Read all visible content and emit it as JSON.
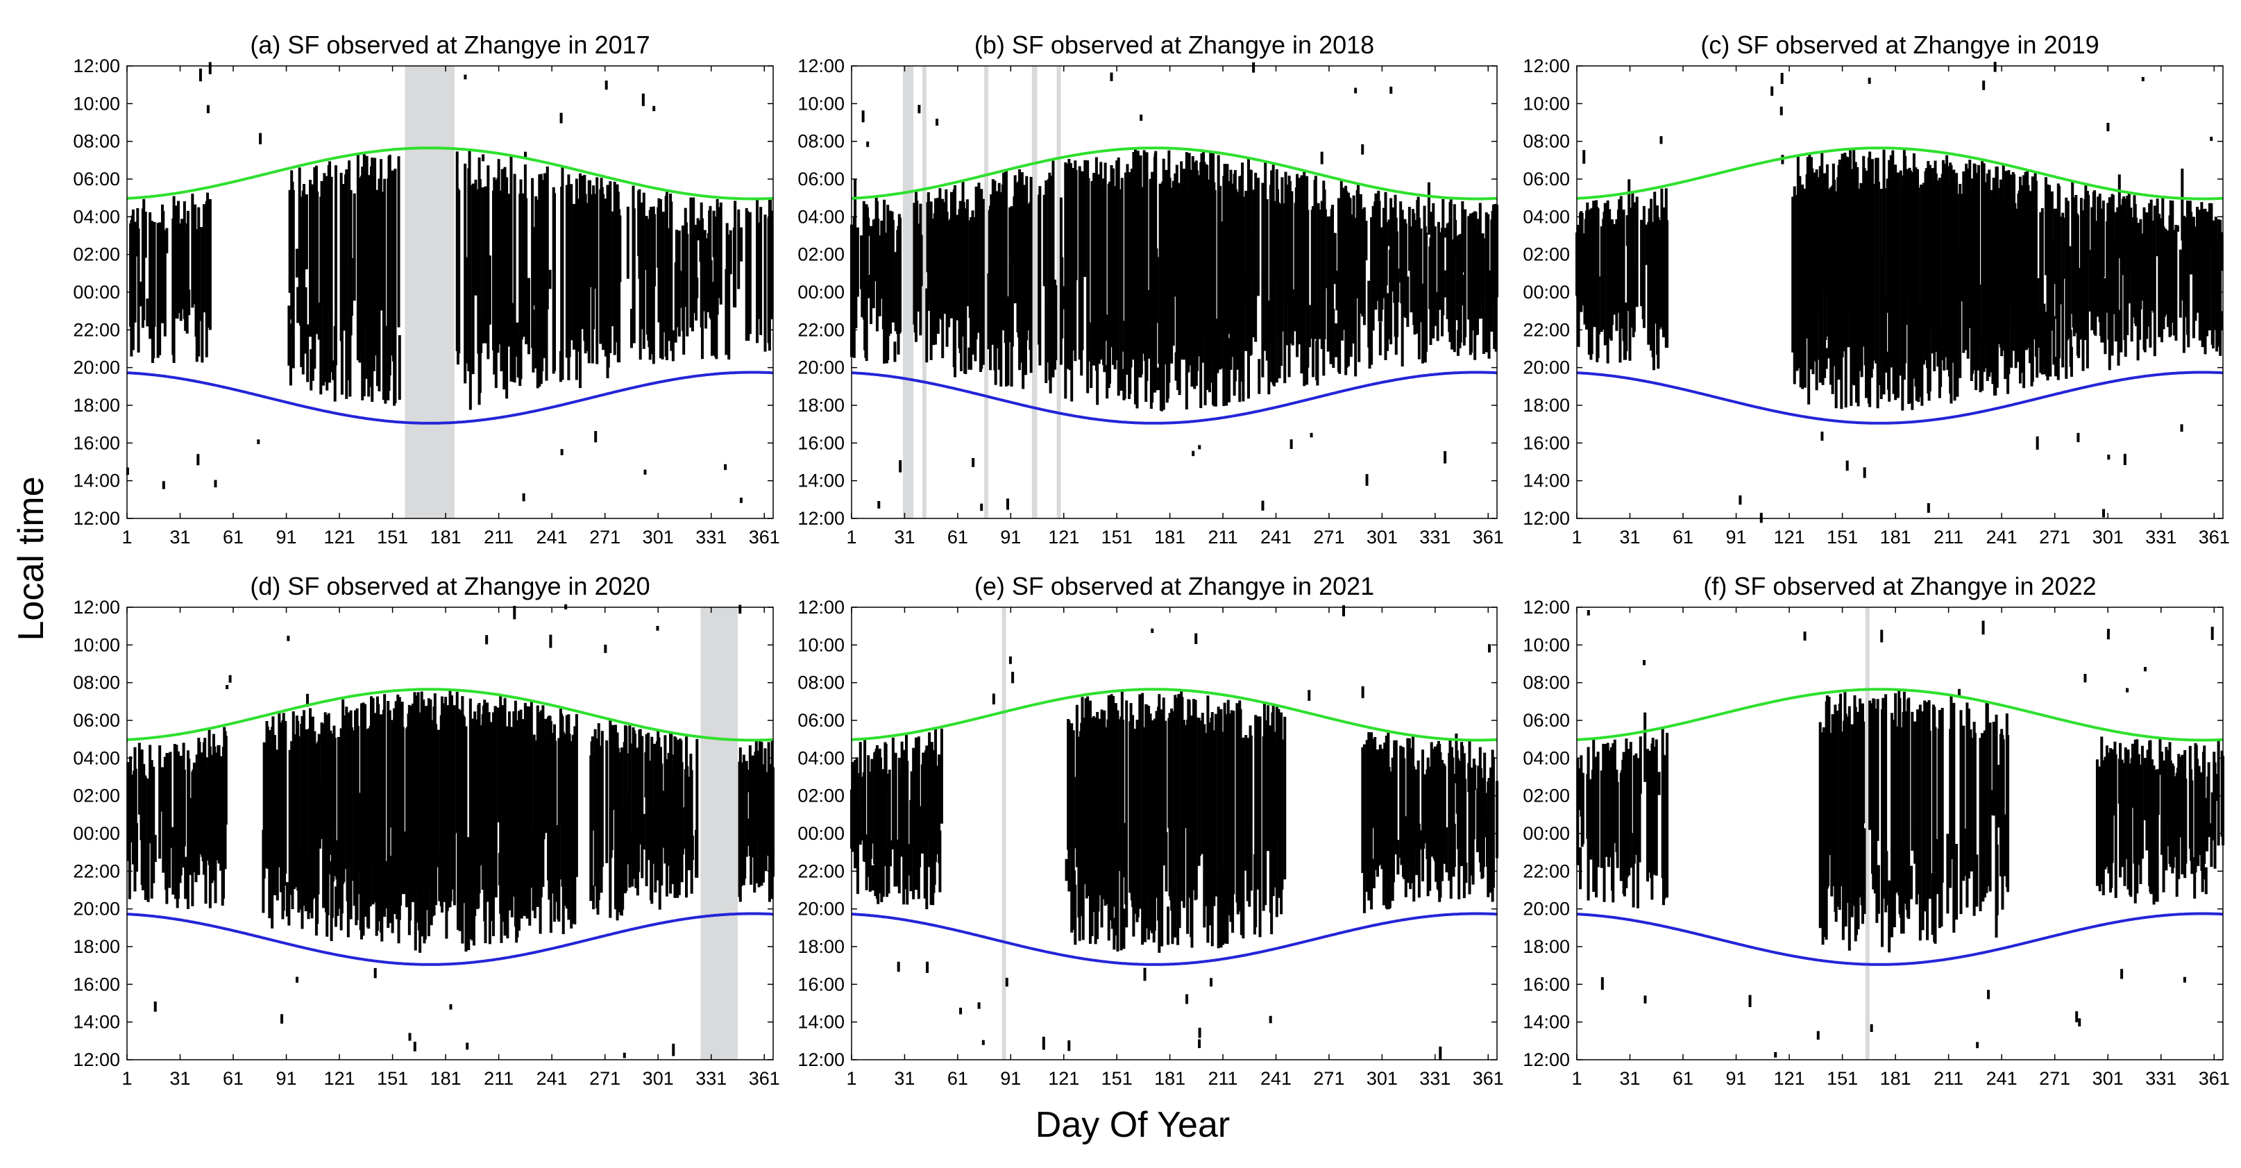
{
  "figure": {
    "xlabel": "Day Of Year",
    "ylabel": "Local time",
    "colors": {
      "sunrise": "#2ee02e",
      "sunset": "#2424d8",
      "observation": "#000000",
      "data_gap": "#d9dadb"
    }
  },
  "chart_data": [
    {
      "type": "scatter",
      "panel": "a",
      "title": "(a) SF observed at Zhangye in 2017",
      "xlim": [
        1,
        366
      ],
      "xticks": [
        "1",
        "31",
        "61",
        "91",
        "121",
        "151",
        "181",
        "211",
        "241",
        "271",
        "301",
        "331",
        "361"
      ],
      "yticks": [
        "12:00",
        "14:00",
        "16:00",
        "18:00",
        "20:00",
        "22:00",
        "00:00",
        "02:00",
        "04:00",
        "06:00",
        "08:00",
        "10:00",
        "12:00"
      ],
      "gaps": [
        [
          158,
          186
        ]
      ],
      "active": [
        [
          3,
          50
        ],
        [
          92,
          155
        ],
        [
          185,
          366
        ]
      ],
      "density": 0.55,
      "seed": 11
    },
    {
      "type": "scatter",
      "panel": "b",
      "title": "(b) SF observed at Zhangye in 2018",
      "xlim": [
        1,
        366
      ],
      "xticks": [
        "1",
        "31",
        "61",
        "91",
        "121",
        "151",
        "181",
        "211",
        "241",
        "271",
        "301",
        "331",
        "361"
      ],
      "yticks": [
        "12:00",
        "14:00",
        "16:00",
        "18:00",
        "20:00",
        "22:00",
        "00:00",
        "02:00",
        "04:00",
        "06:00",
        "08:00",
        "10:00",
        "12:00"
      ],
      "gaps": [
        [
          30,
          36
        ],
        [
          41,
          43
        ],
        [
          76,
          78
        ],
        [
          103,
          106
        ],
        [
          117,
          119
        ]
      ],
      "active": [
        [
          1,
          366
        ]
      ],
      "density": 0.75,
      "seed": 23
    },
    {
      "type": "scatter",
      "panel": "c",
      "title": "(c) SF observed at Zhangye in 2019",
      "xlim": [
        1,
        366
      ],
      "xticks": [
        "1",
        "31",
        "61",
        "91",
        "121",
        "151",
        "181",
        "211",
        "241",
        "271",
        "301",
        "331",
        "361"
      ],
      "yticks": [
        "12:00",
        "14:00",
        "16:00",
        "18:00",
        "20:00",
        "22:00",
        "00:00",
        "02:00",
        "04:00",
        "06:00",
        "08:00",
        "10:00",
        "12:00"
      ],
      "gaps": [],
      "active": [
        [
          1,
          52
        ],
        [
          123,
          366
        ]
      ],
      "density": 0.8,
      "seed": 37
    },
    {
      "type": "scatter",
      "panel": "d",
      "title": "(d) SF observed at Zhangye in 2020",
      "xlim": [
        1,
        366
      ],
      "xticks": [
        "1",
        "31",
        "61",
        "91",
        "121",
        "151",
        "181",
        "211",
        "241",
        "271",
        "301",
        "331",
        "361"
      ],
      "yticks": [
        "12:00",
        "14:00",
        "16:00",
        "18:00",
        "20:00",
        "22:00",
        "00:00",
        "02:00",
        "04:00",
        "06:00",
        "08:00",
        "10:00",
        "12:00"
      ],
      "gaps": [
        [
          325,
          346
        ]
      ],
      "active": [
        [
          1,
          57
        ],
        [
          78,
          255
        ],
        [
          263,
          323
        ],
        [
          347,
          366
        ]
      ],
      "density": 0.75,
      "seed": 41
    },
    {
      "type": "scatter",
      "panel": "e",
      "title": "(e) SF observed at Zhangye in 2021",
      "xlim": [
        1,
        366
      ],
      "xticks": [
        "1",
        "31",
        "61",
        "91",
        "121",
        "151",
        "181",
        "211",
        "241",
        "271",
        "301",
        "331",
        "361"
      ],
      "yticks": [
        "12:00",
        "14:00",
        "16:00",
        "18:00",
        "20:00",
        "22:00",
        "00:00",
        "02:00",
        "04:00",
        "06:00",
        "08:00",
        "10:00",
        "12:00"
      ],
      "gaps": [
        [
          86,
          88
        ]
      ],
      "active": [
        [
          1,
          52
        ],
        [
          122,
          246
        ],
        [
          290,
          366
        ]
      ],
      "density": 0.75,
      "seed": 53
    },
    {
      "type": "scatter",
      "panel": "f",
      "title": "(f) SF observed at Zhangye in 2022",
      "xlim": [
        1,
        366
      ],
      "xticks": [
        "1",
        "31",
        "61",
        "91",
        "121",
        "151",
        "181",
        "211",
        "241",
        "271",
        "301",
        "331",
        "361"
      ],
      "yticks": [
        "12:00",
        "14:00",
        "16:00",
        "18:00",
        "20:00",
        "22:00",
        "00:00",
        "02:00",
        "04:00",
        "06:00",
        "08:00",
        "10:00",
        "12:00"
      ],
      "gaps": [
        [
          164,
          166
        ]
      ],
      "active": [
        [
          1,
          52
        ],
        [
          138,
          245
        ],
        [
          295,
          366
        ]
      ],
      "density": 0.6,
      "seed": 67
    }
  ]
}
